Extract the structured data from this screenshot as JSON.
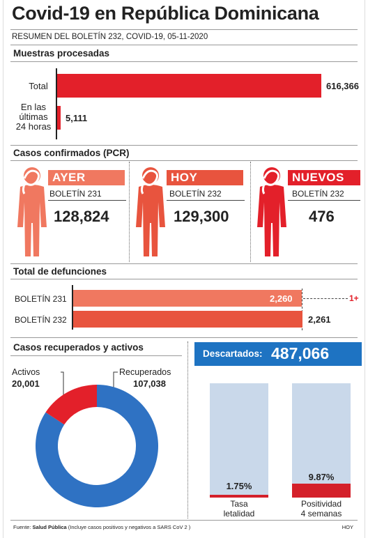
{
  "title": "Covid-19 en República Dominicana",
  "subtitle": "RESUMEN DEL BOLETÍN 232, COVID-19, 05-11-2020",
  "muestras": {
    "heading": "Muestras procesadas",
    "total_label": "Total",
    "total_value": "616,366",
    "last24_label_1": "En las",
    "last24_label_2": "últimas",
    "last24_label_3": "24 horas",
    "last24_value": "5,111"
  },
  "casos": {
    "heading": "Casos confirmados (PCR)",
    "items": [
      {
        "tag": "AYER",
        "bulletin": "BOLETÍN 231",
        "value": "128,824",
        "color": "#f07860"
      },
      {
        "tag": "HOY",
        "bulletin": "BOLETÍN 232",
        "value": "129,300",
        "color": "#e8543e"
      },
      {
        "tag": "NUEVOS",
        "bulletin": "BOLETÍN 232",
        "value": "476",
        "color": "#e3202a"
      }
    ]
  },
  "defunciones": {
    "heading": "Total de defunciones",
    "rows": [
      {
        "label": "BOLETÍN 231",
        "value": "2,260",
        "color": "#f07860"
      },
      {
        "label": "BOLETÍN 232",
        "value": "2,261",
        "color": "#e8543e"
      }
    ],
    "diff": "1+"
  },
  "recuperados": {
    "heading": "Casos recuperados y activos",
    "activos_label": "Activos",
    "activos_value": "20,001",
    "recuperados_label": "Recuperados",
    "recuperados_value": "107,038",
    "activos_num": 20001,
    "recuperados_num": 107038,
    "color_activos": "#e3202a",
    "color_recuperados": "#2f72c3"
  },
  "descartados": {
    "label": "Descartados:",
    "value": "487,066"
  },
  "tasas": [
    {
      "value": "1.75%",
      "label_1": "Tasa",
      "label_2": "letalidad",
      "percent": 1.75
    },
    {
      "value": "9.87%",
      "label_1": "Positividad",
      "label_2": "4 semanas",
      "percent": 9.87
    }
  ],
  "footer": {
    "fuente_prefix": "Fuente: ",
    "fuente_source": "Salud Pública",
    "fuente_note": " (Incluye casos positivos y negativos a SARS CoV 2 )",
    "credit": "HOY"
  }
}
